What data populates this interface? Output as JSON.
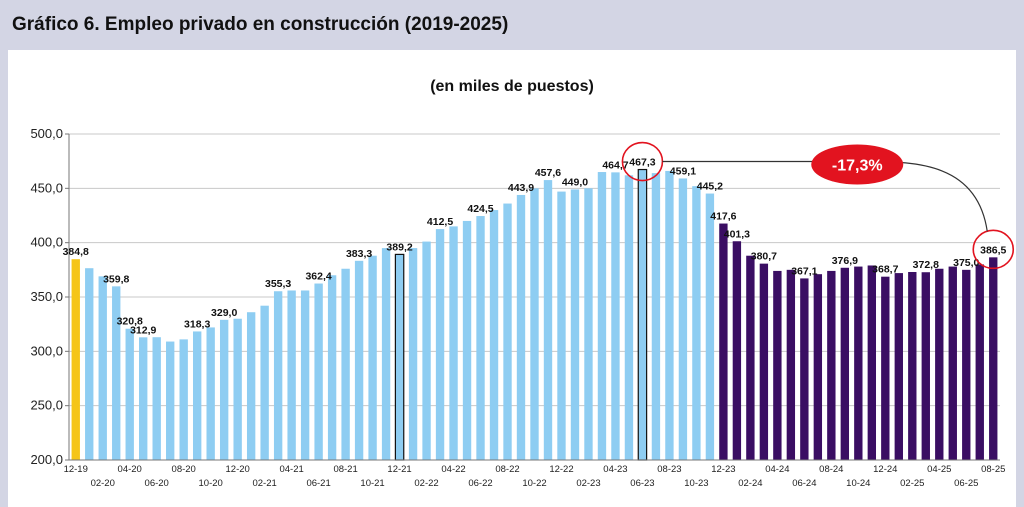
{
  "header": {
    "title": "Gráfico 6. Empleo privado en construcción (2019-2025)"
  },
  "chart_data": {
    "type": "bar",
    "title": "Gráfico 6. Empleo privado en construcción (2019-2025)",
    "subtitle": "(en miles de puestos)",
    "xlabel": "",
    "ylabel": "",
    "ylim": [
      200,
      500
    ],
    "yticks": [
      "200,0",
      "250,0",
      "300,0",
      "350,0",
      "400,0",
      "450,0",
      "500,0"
    ],
    "grid": true,
    "colors": {
      "first": "#f5c518",
      "period1": "#8ecdf2",
      "period2": "#3a0e63"
    },
    "categories": [
      "12-19",
      "01-20",
      "02-20",
      "03-20",
      "04-20",
      "05-20",
      "06-20",
      "07-20",
      "08-20",
      "09-20",
      "10-20",
      "11-20",
      "12-20",
      "01-21",
      "02-21",
      "03-21",
      "04-21",
      "05-21",
      "06-21",
      "07-21",
      "08-21",
      "09-21",
      "10-21",
      "11-21",
      "12-21",
      "01-22",
      "02-22",
      "03-22",
      "04-22",
      "05-22",
      "06-22",
      "07-22",
      "08-22",
      "09-22",
      "10-22",
      "11-22",
      "12-22",
      "01-23",
      "02-23",
      "03-23",
      "04-23",
      "05-23",
      "06-23",
      "07-23",
      "08-23",
      "09-23",
      "10-23",
      "11-23",
      "12-23",
      "01-24",
      "02-24",
      "03-24",
      "04-24",
      "05-24",
      "06-24",
      "07-24",
      "08-24",
      "09-24",
      "10-24",
      "11-24",
      "12-24",
      "01-25",
      "02-25",
      "03-25",
      "04-25",
      "05-25",
      "06-25",
      "07-25",
      "08-25"
    ],
    "values": [
      384.8,
      376.5,
      369.0,
      359.8,
      320.8,
      312.9,
      313.0,
      309.0,
      311.0,
      318.3,
      322.0,
      329.0,
      330.0,
      336.0,
      342.0,
      355.3,
      356.0,
      356.0,
      362.4,
      370.0,
      376.0,
      383.3,
      388.0,
      395.0,
      389.2,
      395.0,
      401.0,
      412.5,
      415.0,
      420.0,
      424.5,
      430.0,
      436.0,
      443.9,
      450.0,
      457.6,
      447.0,
      449.0,
      450.0,
      465.0,
      464.7,
      462.0,
      467.3,
      464.0,
      466.0,
      459.1,
      452.0,
      445.2,
      417.6,
      401.3,
      388.0,
      380.7,
      374.0,
      375.0,
      367.1,
      371.0,
      374.0,
      376.9,
      378.0,
      379.0,
      368.7,
      372.0,
      373.0,
      372.8,
      376.0,
      378.0,
      375.0,
      380.0,
      386.5
    ],
    "x_tick_labels": [
      "12-19",
      "",
      "02-20",
      "",
      "04-20",
      "",
      "06-20",
      "",
      "08-20",
      "",
      "10-20",
      "",
      "12-20",
      "",
      "02-21",
      "",
      "04-21",
      "",
      "06-21",
      "",
      "08-21",
      "",
      "10-21",
      "",
      "12-21",
      "",
      "02-22",
      "",
      "04-22",
      "",
      "06-22",
      "",
      "08-22",
      "",
      "10-22",
      "",
      "12-22",
      "",
      "02-23",
      "",
      "04-23",
      "",
      "06-23",
      "",
      "08-23",
      "",
      "10-23",
      "",
      "12-23",
      "",
      "02-24",
      "",
      "04-24",
      "",
      "06-24",
      "",
      "08-24",
      "",
      "10-24",
      "",
      "12-24",
      "",
      "02-25",
      "",
      "04-25",
      "",
      "06-25",
      "",
      "08-25"
    ],
    "data_labels": [
      {
        "index": 0,
        "text": "384,8"
      },
      {
        "index": 3,
        "text": "359,8"
      },
      {
        "index": 4,
        "text": "320,8"
      },
      {
        "index": 5,
        "text": "312,9"
      },
      {
        "index": 9,
        "text": "318,3"
      },
      {
        "index": 11,
        "text": "329,0"
      },
      {
        "index": 15,
        "text": "355,3"
      },
      {
        "index": 18,
        "text": "362,4"
      },
      {
        "index": 21,
        "text": "383,3"
      },
      {
        "index": 24,
        "text": "389,2"
      },
      {
        "index": 27,
        "text": "412,5"
      },
      {
        "index": 30,
        "text": "424,5"
      },
      {
        "index": 33,
        "text": "443,9"
      },
      {
        "index": 35,
        "text": "457,6"
      },
      {
        "index": 37,
        "text": "449,0"
      },
      {
        "index": 40,
        "text": "464,7"
      },
      {
        "index": 42,
        "text": "467,3"
      },
      {
        "index": 45,
        "text": "459,1"
      },
      {
        "index": 47,
        "text": "445,2"
      },
      {
        "index": 48,
        "text": "417,6"
      },
      {
        "index": 49,
        "text": "401,3"
      },
      {
        "index": 51,
        "text": "380,7"
      },
      {
        "index": 54,
        "text": "367,1"
      },
      {
        "index": 57,
        "text": "376,9"
      },
      {
        "index": 60,
        "text": "368,7"
      },
      {
        "index": 63,
        "text": "372,8"
      },
      {
        "index": 66,
        "text": "375,0"
      },
      {
        "index": 68,
        "text": "386,5"
      }
    ],
    "outlined_bars": [
      24,
      42
    ],
    "circled_bars": [
      42,
      68
    ],
    "period2_start_index": 48,
    "annotation": {
      "text": "-17,3%",
      "from_index": 42,
      "to_index": 68
    }
  }
}
